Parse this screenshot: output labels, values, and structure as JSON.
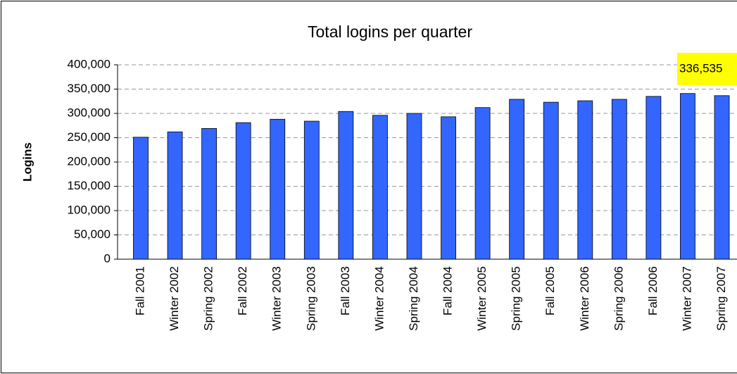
{
  "chart_data": {
    "type": "bar",
    "title": "Total logins per quarter",
    "y_label": "Logins",
    "categories": [
      "Fall 2001",
      "Winter 2002",
      "Spring 2002",
      "Fall 2002",
      "Winter 2003",
      "Spring 2003",
      "Fall 2003",
      "Winter 2004",
      "Spring 2004",
      "Fall 2004",
      "Winter 2005",
      "Spring 2005",
      "Fall 2005",
      "Winter 2006",
      "Spring 2006",
      "Fall 2006",
      "Winter 2007",
      "Spring 2007"
    ],
    "values": [
      251000,
      262000,
      269000,
      281000,
      288000,
      284000,
      304000,
      296000,
      300000,
      293000,
      312000,
      329000,
      323000,
      326000,
      329000,
      335000,
      341000,
      336535
    ],
    "value_labels": [
      null,
      null,
      null,
      null,
      null,
      null,
      null,
      null,
      null,
      null,
      null,
      null,
      null,
      null,
      null,
      null,
      null,
      "336,535"
    ],
    "color": "#3366ff",
    "ylim": [
      0,
      400000
    ],
    "yticks": [
      0,
      {
        "value": 50000,
        "label": "50,000"
      },
      {
        "value": 100000,
        "label": "100,000"
      },
      {
        "value": 150000,
        "label": "150,000"
      },
      {
        "value": 200000,
        "label": "200,000"
      },
      {
        "value": 250000,
        "label": "250,000"
      },
      {
        "value": 300000,
        "label": "300,000"
      },
      {
        "value": 350000,
        "label": "350,000"
      },
      {
        "value": 400000,
        "label": "400,000"
      }
    ],
    "grid": true
  }
}
